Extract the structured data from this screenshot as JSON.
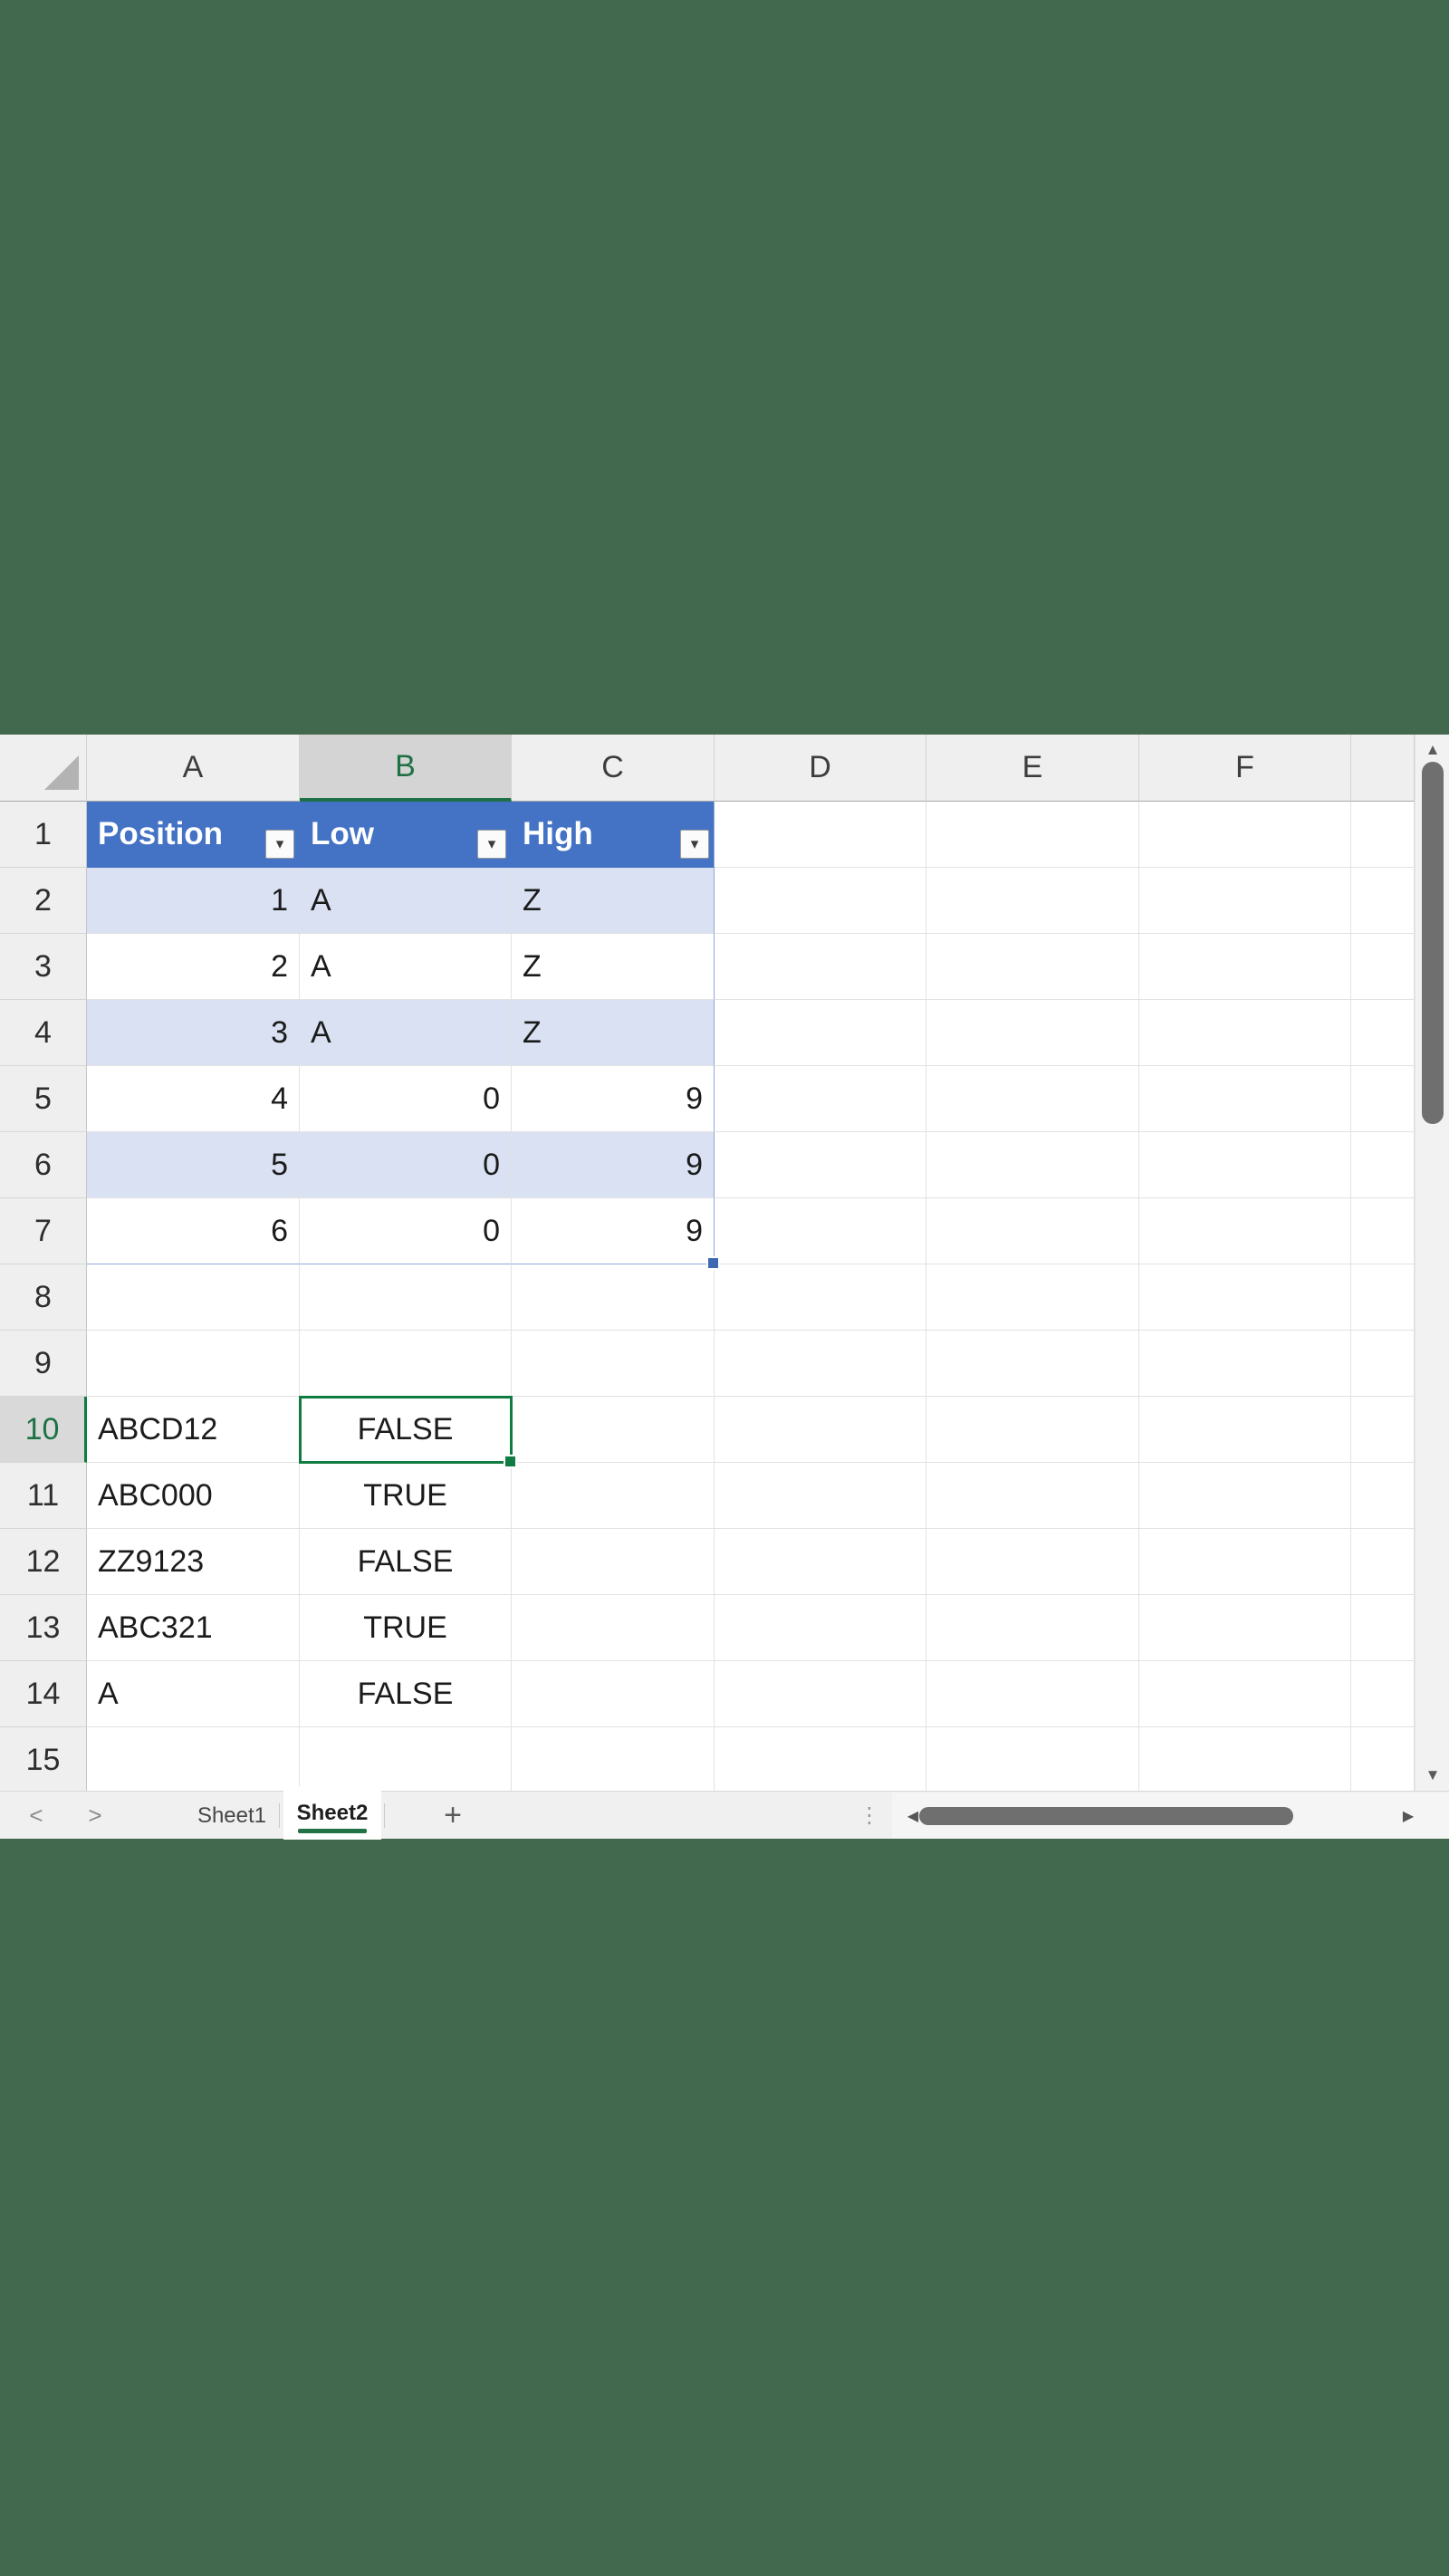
{
  "sheet": {
    "columns": {
      "a": "A",
      "b": "B",
      "c": "C",
      "d": "D",
      "e": "E",
      "f": "F"
    },
    "active_column": "B",
    "active_cell": "B10",
    "rows": {
      "r1": "1",
      "r2": "2",
      "r3": "3",
      "r4": "4",
      "r5": "5",
      "r6": "6",
      "r7": "7",
      "r8": "8",
      "r9": "9",
      "r10": "10",
      "r11": "11",
      "r12": "12",
      "r13": "13",
      "r14": "14",
      "r15": "15"
    },
    "active_row": "10",
    "cells": {
      "r1": {
        "a": "Position",
        "b": "Low",
        "c": "High"
      },
      "r2": {
        "a": "1",
        "b": "A",
        "c": "Z"
      },
      "r3": {
        "a": "2",
        "b": "A",
        "c": "Z"
      },
      "r4": {
        "a": "3",
        "b": "A",
        "c": "Z"
      },
      "r5": {
        "a": "4",
        "b": "0",
        "c": "9"
      },
      "r6": {
        "a": "5",
        "b": "0",
        "c": "9"
      },
      "r7": {
        "a": "6",
        "b": "0",
        "c": "9"
      },
      "r10": {
        "a": "ABCD12",
        "b": "FALSE"
      },
      "r11": {
        "a": "ABC000",
        "b": "TRUE"
      },
      "r12": {
        "a": "ZZ9123",
        "b": "FALSE"
      },
      "r13": {
        "a": "ABC321",
        "b": "TRUE"
      },
      "r14": {
        "a": "A",
        "b": "FALSE"
      }
    }
  },
  "tabs": {
    "sheet1": "Sheet1",
    "sheet2": "Sheet2",
    "active_tab": "Sheet2"
  },
  "icons": {
    "filter_arrow": "▾",
    "scroll_up": "▲",
    "scroll_down": "▼",
    "scroll_left": "◀",
    "scroll_right": "▶",
    "tab_prev": "<",
    "tab_next": ">",
    "add_sheet": "+",
    "splitter_dots": "⋮"
  },
  "colors": {
    "table_header_fill": "#4472C4",
    "banded_row_fill": "#D9E1F2",
    "table_border": "#8EA9DB",
    "selection_green": "#107C41",
    "active_header_green": "#1E7145",
    "background_green": "#42694E",
    "scroll_thumb": "#6F6F6F"
  }
}
